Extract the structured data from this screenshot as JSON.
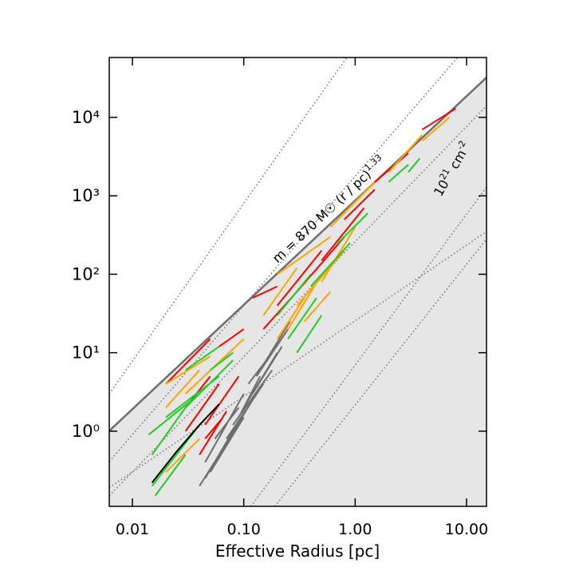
{
  "chart_data": {
    "type": "line",
    "xlabel": "Effective Radius  [pc]",
    "xscale": "log",
    "yscale": "log",
    "xlim": [
      0.0062,
      15.1
    ],
    "ylim": [
      0.11,
      58000
    ],
    "xticks": [
      0.01,
      {
        "value": 0.1,
        "label": "0.10"
      },
      {
        "value": 1,
        "label": "1.00"
      },
      {
        "value": 10,
        "label": "10.00"
      }
    ],
    "yticks": [
      {
        "value": 1,
        "label": "10⁰"
      },
      {
        "value": 10,
        "label": "10¹"
      },
      {
        "value": 100,
        "label": "10²"
      },
      {
        "value": 1000,
        "label": "10³"
      },
      {
        "value": 10000,
        "label": "10⁴"
      }
    ],
    "annotations": [
      {
        "text": "m = 870 M☉ (r / pc)",
        "sup": "1.33"
      },
      {
        "text": "10",
        "sup": "21",
        "text2": " cm",
        "sup2": "-2"
      }
    ],
    "reference": {
      "color": "#6e6e6e",
      "shade_below": true,
      "shade_color": "#e6e6e6",
      "x": [
        0.0062,
        15.1
      ],
      "values": [
        1.01,
        32200
      ]
    },
    "guides": [
      {
        "color": "#777777",
        "style": "dotted",
        "x": [
          0.0062,
          0.84
        ],
        "values": [
          3.0,
          58000
        ]
      },
      {
        "color": "#777777",
        "style": "dotted",
        "x": [
          0.0062,
          8.3
        ],
        "values": [
          0.41,
          58000
        ]
      },
      {
        "color": "#777777",
        "style": "dotted",
        "x": [
          0.0062,
          15.1
        ],
        "values": [
          0.15,
          14000
        ]
      },
      {
        "color": "#777777",
        "style": "dotted",
        "x": [
          0.0062,
          15.1
        ],
        "values": [
          0.19,
          350
        ]
      },
      {
        "color": "#777777",
        "style": "dotted",
        "x": [
          0.116,
          15.1
        ],
        "values": [
          0.11,
          1290
        ]
      },
      {
        "color": "#777777",
        "style": "dotted",
        "x": [
          0.19,
          15.1
        ],
        "values": [
          0.11,
          280
        ]
      }
    ],
    "series": [
      {
        "color": "#6e6e6e",
        "x": [
          0.045,
          0.08,
          null,
          0.05,
          0.1,
          null,
          0.06,
          0.12,
          null,
          0.07,
          0.15,
          null,
          0.08,
          0.18,
          null,
          0.1,
          0.2,
          null,
          0.12,
          0.22,
          null,
          0.13,
          0.25,
          null,
          0.15,
          0.26,
          null,
          0.04,
          0.07,
          null,
          0.055,
          0.09,
          null,
          0.09,
          0.14,
          null,
          0.11,
          0.17,
          null,
          0.045,
          0.1
        ],
        "values": [
          0.25,
          1.0,
          null,
          0.3,
          1.5,
          null,
          0.5,
          2.5,
          null,
          0.8,
          4,
          null,
          1.2,
          6,
          null,
          2,
          10,
          null,
          3,
          12,
          null,
          5,
          20,
          null,
          7,
          25,
          null,
          0.2,
          0.7,
          null,
          0.8,
          2,
          null,
          1.5,
          5,
          null,
          4,
          9,
          null,
          0.4,
          3
        ]
      },
      {
        "color": "#ff0000",
        "x": [
          0.04,
          0.07,
          null,
          0.045,
          0.065,
          null,
          0.03,
          0.06,
          null,
          0.05,
          0.09,
          null,
          0.03,
          0.05,
          null,
          0.15,
          0.3,
          null,
          0.2,
          0.5,
          null,
          0.3,
          0.8,
          null,
          0.5,
          1.2,
          null,
          1.5,
          3,
          null,
          4,
          8,
          null,
          0.12,
          0.2,
          null,
          0.06,
          0.1,
          null,
          0.02,
          0.05,
          null,
          0.8,
          1.5,
          null,
          0.045,
          0.06
        ],
        "values": [
          0.5,
          1.8,
          null,
          0.8,
          1.5,
          null,
          1,
          4,
          null,
          1.5,
          5,
          null,
          2,
          5,
          null,
          20,
          60,
          null,
          40,
          200,
          null,
          60,
          300,
          null,
          150,
          700,
          null,
          1500,
          3500,
          null,
          7000,
          13000,
          null,
          50,
          70,
          null,
          12,
          20,
          null,
          4,
          15,
          null,
          500,
          1200,
          null,
          1.2,
          2.2
        ]
      },
      {
        "color": "#ffa500",
        "x": [
          0.02,
          0.05,
          null,
          0.02,
          0.04,
          null,
          0.03,
          0.1,
          null,
          0.15,
          0.3,
          null,
          0.2,
          0.35,
          null,
          0.25,
          0.5,
          null,
          0.3,
          0.8,
          null,
          0.5,
          1,
          null,
          0.2,
          0.6,
          null,
          0.6,
          1.5,
          null,
          2,
          4,
          null,
          4,
          7,
          null,
          0.35,
          0.6,
          null,
          0.02,
          0.04
        ],
        "values": [
          4,
          9,
          null,
          2,
          6,
          null,
          3,
          15,
          null,
          30,
          120,
          null,
          15,
          50,
          null,
          20,
          100,
          null,
          40,
          200,
          null,
          80,
          400,
          null,
          100,
          300,
          null,
          400,
          1500,
          null,
          2000,
          6000,
          null,
          5000,
          10000,
          null,
          25,
          60,
          null,
          0.3,
          0.8
        ]
      },
      {
        "color": "#22cc22",
        "x": [
          0.015,
          0.04,
          null,
          0.015,
          0.03,
          null,
          0.014,
          0.04,
          null,
          0.016,
          0.03,
          null,
          0.02,
          0.06,
          null,
          0.03,
          0.08,
          null,
          0.2,
          0.4,
          null,
          0.25,
          0.45,
          null,
          0.3,
          0.5,
          null,
          0.4,
          0.9,
          null,
          0.7,
          1.3,
          null,
          2,
          3,
          null,
          3,
          3.8,
          null,
          0.05,
          0.08,
          null,
          0.03,
          0.06
        ],
        "values": [
          0.2,
          1.2,
          null,
          0.5,
          2,
          null,
          0.9,
          3,
          null,
          0.15,
          0.5,
          null,
          1.5,
          5,
          null,
          2,
          8,
          null,
          30,
          100,
          null,
          15,
          50,
          null,
          10,
          30,
          null,
          70,
          250,
          null,
          250,
          600,
          null,
          1500,
          2500,
          null,
          2000,
          3000,
          null,
          6,
          10,
          null,
          6,
          12
        ]
      },
      {
        "color": "#000000",
        "x": [
          0.015,
          0.025,
          0.04,
          0.06
        ],
        "values": [
          0.22,
          0.55,
          1.2,
          2.2
        ]
      }
    ]
  }
}
